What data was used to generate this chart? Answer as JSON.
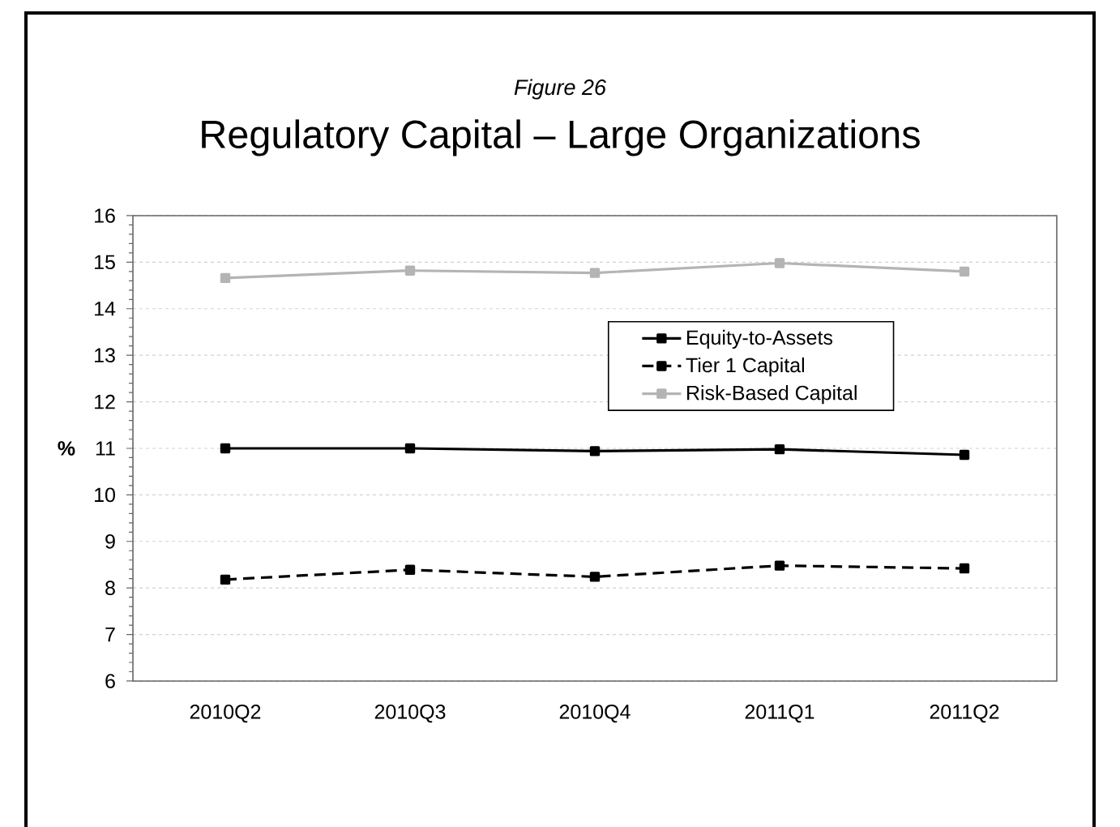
{
  "chart_data": {
    "type": "line",
    "title": "Regulatory Capital – Large Organizations",
    "annotations": [
      "Figure 26"
    ],
    "ylabel": "%",
    "categories": [
      "2010Q2",
      "2010Q3",
      "2010Q4",
      "2011Q1",
      "2011Q2"
    ],
    "series": [
      {
        "name": "Equity-to-Assets",
        "color": "#000000",
        "line_style": "solid",
        "values": [
          11.0,
          11.0,
          10.94,
          10.98,
          10.86
        ]
      },
      {
        "name": "Tier 1 Capital",
        "color": "#000000",
        "line_style": "dashed",
        "values": [
          8.18,
          8.39,
          8.24,
          8.48,
          8.42
        ]
      },
      {
        "name": "Risk-Based Capital",
        "color": "#b4b4b4",
        "line_style": "solid",
        "values": [
          14.66,
          14.82,
          14.77,
          14.98,
          14.8
        ]
      }
    ],
    "ylim": [
      6,
      16
    ],
    "yticks": [
      6,
      7,
      8,
      9,
      10,
      11,
      12,
      13,
      14,
      15,
      16
    ],
    "grid": "y",
    "legend": "right",
    "marker": "square"
  }
}
